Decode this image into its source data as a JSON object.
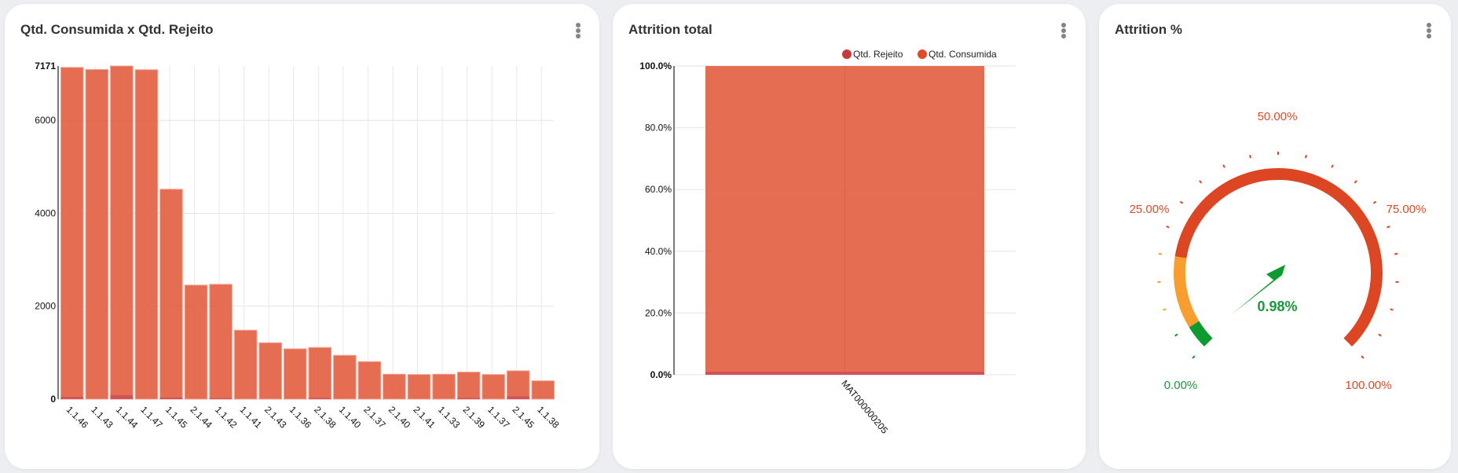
{
  "colors": {
    "consumida": "#e15d3f",
    "rejeito": "#c94a5a",
    "legend_rejeito": "#c43c39",
    "legend_consumida": "#e04a26",
    "gauge_green": "#0d9a2e",
    "gauge_orange": "#f89e2e",
    "gauge_red": "#dc4623",
    "gauge_label_green": "#1a9a3a",
    "gauge_label_red": "#e04a26"
  },
  "cards": {
    "consumo": {
      "title": "Qtd. Consumida x Qtd. Rejeito"
    },
    "attrition_total": {
      "title": "Attrition total"
    },
    "attrition_pct": {
      "title": "Attrition %"
    }
  },
  "chart_data": [
    {
      "type": "bar",
      "title": "Qtd. Consumida x Qtd. Rejeito",
      "categories": [
        "1.1.46",
        "1.1.43",
        "1.1.44",
        "1.1.47",
        "1.1.45",
        "2.1.44",
        "1.1.42",
        "1.1.41",
        "2.1.43",
        "1.1.36",
        "2.1.38",
        "1.1.40",
        "2.1.37",
        "2.1.40",
        "2.1.41",
        "1.1.33",
        "2.1.39",
        "1.1.37",
        "2.1.45",
        "1.1.38"
      ],
      "series": [
        {
          "name": "Qtd. Consumida",
          "values": [
            7140,
            7095,
            7171,
            7090,
            4518,
            2454,
            2471,
            1484,
            1213,
            1083,
            1111,
            942,
            807,
            536,
            530,
            536,
            581,
            530,
            609,
            394
          ]
        },
        {
          "name": "Qtd. Rejeito",
          "values": [
            50,
            0,
            85,
            0,
            35,
            0,
            20,
            0,
            0,
            0,
            25,
            0,
            0,
            0,
            0,
            0,
            25,
            0,
            60,
            0
          ]
        }
      ],
      "y_ticks": [
        {
          "value": 0,
          "label": "0"
        },
        {
          "value": 2000,
          "label": "2000"
        },
        {
          "value": 4000,
          "label": "4000"
        },
        {
          "value": 6000,
          "label": "6000"
        },
        {
          "value": 7171,
          "label": "7171"
        }
      ],
      "ylim": [
        0,
        7171
      ],
      "grid": true
    },
    {
      "type": "bar",
      "title": "Attrition total",
      "categories": [
        "MAT000000205"
      ],
      "series": [
        {
          "name": "Qtd. Rejeito",
          "values": [
            0.98
          ]
        },
        {
          "name": "Qtd. Consumida",
          "values": [
            100
          ]
        }
      ],
      "legend": [
        "Qtd. Rejeito",
        "Qtd. Consumida"
      ],
      "legend_position": "top-right",
      "y_ticks": [
        "0.0%",
        "20.0%",
        "40.0%",
        "60.0%",
        "80.0%",
        "100.0%"
      ],
      "ylim": [
        0,
        100
      ],
      "grid": true
    },
    {
      "type": "gauge",
      "title": "Attrition %",
      "value": 0.98,
      "value_label": "0.98%",
      "min": 0,
      "max": 100,
      "needle_angle_value": 60,
      "bands": [
        {
          "from": 0,
          "to": 5,
          "color": "green"
        },
        {
          "from": 5,
          "to": 20,
          "color": "orange"
        },
        {
          "from": 20,
          "to": 100,
          "color": "red"
        }
      ],
      "tick_step": 5,
      "labels": [
        {
          "value": 0,
          "text": "0.00%"
        },
        {
          "value": 25,
          "text": "25.00%"
        },
        {
          "value": 50,
          "text": "50.00%"
        },
        {
          "value": 75,
          "text": "75.00%"
        },
        {
          "value": 100,
          "text": "100.00%"
        }
      ]
    }
  ]
}
